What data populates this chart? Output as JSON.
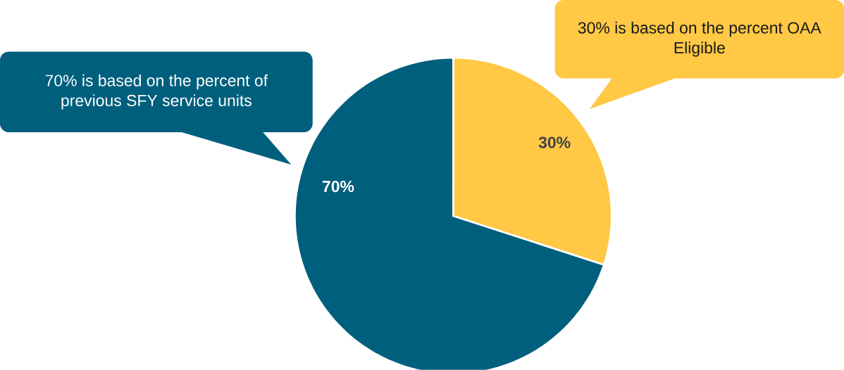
{
  "chart_data": {
    "type": "pie",
    "categories": [
      null,
      null
    ],
    "values": [
      30,
      70
    ],
    "colors": [
      "#ffc845",
      "#005f7d"
    ],
    "value_labels": [
      "30%",
      "70%"
    ],
    "annotations": [
      "30% is based on the percent OAA Eligible",
      "70% is based on the percent of previous SFY service units"
    ]
  }
}
